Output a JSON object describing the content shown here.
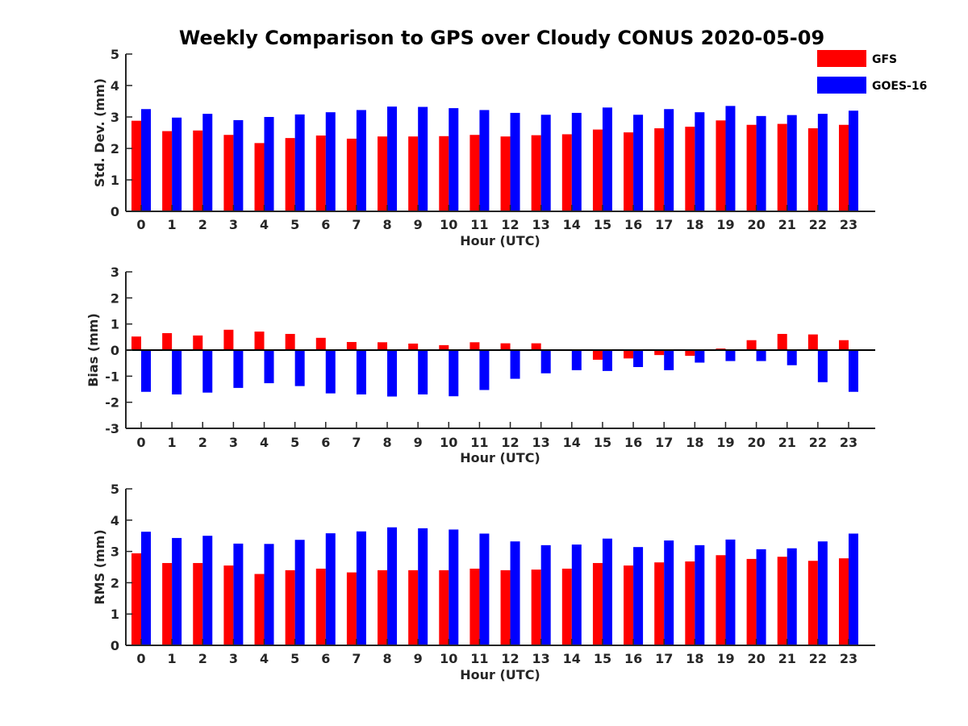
{
  "chart_data": [
    {
      "type": "bar",
      "panel": "std",
      "title": "Weekly Comparison to GPS over Cloudy CONUS 2020-05-09",
      "xlabel": "Hour (UTC)",
      "ylabel": "Std. Dev. (mm)",
      "ylim": [
        0,
        5
      ],
      "yticks": [
        0,
        1,
        2,
        3,
        4,
        5
      ],
      "grid": false,
      "legend": "top-right",
      "categories": [
        "0",
        "1",
        "2",
        "3",
        "4",
        "5",
        "6",
        "7",
        "8",
        "9",
        "10",
        "11",
        "12",
        "13",
        "14",
        "15",
        "16",
        "17",
        "18",
        "19",
        "20",
        "21",
        "22",
        "23"
      ],
      "series": [
        {
          "name": "GFS",
          "color": "#ff0000",
          "values": [
            2.88,
            2.55,
            2.57,
            2.43,
            2.17,
            2.33,
            2.41,
            2.31,
            2.38,
            2.38,
            2.39,
            2.43,
            2.38,
            2.42,
            2.45,
            2.6,
            2.51,
            2.64,
            2.69,
            2.89,
            2.75,
            2.78,
            2.64,
            2.75
          ]
        },
        {
          "name": "GOES-16",
          "color": "#0000ff",
          "values": [
            3.25,
            2.98,
            3.1,
            2.9,
            3.0,
            3.08,
            3.15,
            3.22,
            3.33,
            3.32,
            3.28,
            3.22,
            3.13,
            3.07,
            3.13,
            3.3,
            3.07,
            3.25,
            3.15,
            3.35,
            3.03,
            3.06,
            3.1,
            3.2
          ]
        }
      ]
    },
    {
      "type": "bar",
      "panel": "bias",
      "xlabel": "Hour (UTC)",
      "ylabel": "Bias (mm)",
      "ylim": [
        -3,
        3
      ],
      "yticks": [
        -3,
        -2,
        -1,
        0,
        1,
        2,
        3
      ],
      "grid": false,
      "zero_line": true,
      "categories": [
        "0",
        "1",
        "2",
        "3",
        "4",
        "5",
        "6",
        "7",
        "8",
        "9",
        "10",
        "11",
        "12",
        "13",
        "14",
        "15",
        "16",
        "17",
        "18",
        "19",
        "20",
        "21",
        "22",
        "23"
      ],
      "series": [
        {
          "name": "GFS",
          "color": "#ff0000",
          "values": [
            0.52,
            0.65,
            0.56,
            0.78,
            0.71,
            0.62,
            0.47,
            0.31,
            0.3,
            0.25,
            0.19,
            0.3,
            0.26,
            0.26,
            -0.03,
            -0.37,
            -0.32,
            -0.19,
            -0.22,
            0.06,
            0.38,
            0.62,
            0.6,
            0.38
          ]
        },
        {
          "name": "GOES-16",
          "color": "#0000ff",
          "values": [
            -1.6,
            -1.7,
            -1.63,
            -1.45,
            -1.27,
            -1.38,
            -1.66,
            -1.7,
            -1.78,
            -1.7,
            -1.77,
            -1.53,
            -1.1,
            -0.89,
            -0.77,
            -0.8,
            -0.65,
            -0.77,
            -0.48,
            -0.42,
            -0.42,
            -0.58,
            -1.23,
            -1.6
          ]
        }
      ]
    },
    {
      "type": "bar",
      "panel": "rms",
      "xlabel": "Hour (UTC)",
      "ylabel": "RMS (mm)",
      "ylim": [
        0,
        5
      ],
      "yticks": [
        0,
        1,
        2,
        3,
        4,
        5
      ],
      "grid": false,
      "categories": [
        "0",
        "1",
        "2",
        "3",
        "4",
        "5",
        "6",
        "7",
        "8",
        "9",
        "10",
        "11",
        "12",
        "13",
        "14",
        "15",
        "16",
        "17",
        "18",
        "19",
        "20",
        "21",
        "22",
        "23"
      ],
      "series": [
        {
          "name": "GFS",
          "color": "#ff0000",
          "values": [
            2.94,
            2.63,
            2.63,
            2.55,
            2.28,
            2.4,
            2.45,
            2.33,
            2.4,
            2.4,
            2.4,
            2.45,
            2.4,
            2.42,
            2.45,
            2.63,
            2.55,
            2.65,
            2.68,
            2.88,
            2.76,
            2.83,
            2.7,
            2.78
          ]
        },
        {
          "name": "GOES-16",
          "color": "#0000ff",
          "values": [
            3.63,
            3.43,
            3.5,
            3.25,
            3.24,
            3.37,
            3.58,
            3.64,
            3.77,
            3.74,
            3.7,
            3.57,
            3.32,
            3.2,
            3.22,
            3.41,
            3.14,
            3.35,
            3.2,
            3.38,
            3.07,
            3.1,
            3.32,
            3.57
          ]
        }
      ]
    }
  ]
}
